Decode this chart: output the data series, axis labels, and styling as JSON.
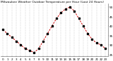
{
  "title": "Milwaukee Weather Outdoor Temperature per Hour (Last 24 Hours)",
  "hours": [
    0,
    1,
    2,
    3,
    4,
    5,
    6,
    7,
    8,
    9,
    10,
    11,
    12,
    13,
    14,
    15,
    16,
    17,
    18,
    19,
    20,
    21,
    22,
    23
  ],
  "temps": [
    38,
    36,
    34,
    32,
    30,
    28,
    27,
    26,
    28,
    32,
    36,
    40,
    44,
    47,
    49,
    50,
    48,
    44,
    40,
    36,
    33,
    31,
    30,
    28
  ],
  "line_color": "#cc0000",
  "marker_color": "#000000",
  "bg_color": "#ffffff",
  "grid_color": "#999999",
  "title_color": "#000000",
  "tick_color": "#000000",
  "ylim": [
    24,
    52
  ],
  "yticks": [
    25,
    30,
    35,
    40,
    45,
    50
  ],
  "xticks": [
    0,
    1,
    2,
    3,
    4,
    5,
    6,
    7,
    8,
    9,
    10,
    11,
    12,
    13,
    14,
    15,
    16,
    17,
    18,
    19,
    20,
    21,
    22,
    23
  ],
  "title_fontsize": 3.2,
  "tick_fontsize": 3.0,
  "linewidth": 0.7,
  "markersize": 1.8
}
